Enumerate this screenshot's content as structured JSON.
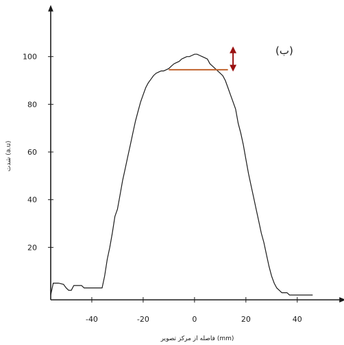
{
  "chart_data": {
    "type": "line",
    "title": "",
    "panel_label": "(ب)",
    "xlabel": "فاصله از مرکز تصویر (mm)",
    "ylabel": "شدت (a.u)",
    "x_ticks": [
      -40,
      -20,
      0,
      20,
      40
    ],
    "y_ticks": [
      20,
      40,
      60,
      80,
      100
    ],
    "xlim": [
      -56,
      55
    ],
    "ylim": [
      -2,
      118
    ],
    "grid": false,
    "series": [
      {
        "color": "#1a1a1a",
        "x": [
          -56,
          -55,
          -53,
          -51,
          -50,
          -49,
          -48,
          -47,
          -46,
          -45,
          -44,
          -43,
          -42,
          -41,
          -40,
          -39,
          -38,
          -37,
          -36,
          -35,
          -34,
          -33,
          -32,
          -31,
          -30,
          -29,
          -28,
          -27,
          -26,
          -25,
          -24,
          -23,
          -22,
          -21,
          -20,
          -19,
          -18,
          -17,
          -16,
          -15,
          -14,
          -13,
          -12,
          -11,
          -10,
          -9,
          -8,
          -7,
          -6,
          -5,
          -4,
          -3,
          -2,
          -1,
          0,
          1,
          2,
          3,
          4,
          5,
          6,
          7,
          8,
          9,
          10,
          11,
          12,
          13,
          14,
          15,
          16,
          17,
          18,
          19,
          20,
          21,
          22,
          23,
          24,
          25,
          26,
          27,
          28,
          29,
          30,
          31,
          32,
          33,
          34,
          35,
          36,
          37,
          38,
          39,
          40,
          41,
          42,
          43,
          44,
          46
        ],
        "values": [
          0,
          5,
          5,
          4.5,
          3,
          2,
          2,
          4,
          4,
          4,
          4,
          3,
          3,
          3,
          3,
          3,
          3,
          3,
          3,
          8,
          15,
          20,
          26,
          33,
          36,
          42,
          48,
          53,
          58,
          63,
          68,
          73,
          77,
          81,
          84,
          87,
          89,
          90.5,
          92,
          93,
          93.5,
          94,
          94,
          94.5,
          95,
          96,
          97,
          97.5,
          98,
          99,
          99.5,
          100,
          100,
          100.5,
          101,
          101,
          100.5,
          100,
          99.5,
          99,
          97,
          96,
          95,
          94,
          93,
          92,
          90,
          87,
          84,
          81,
          78,
          72,
          68,
          63,
          57,
          51,
          46,
          41,
          36,
          31,
          26,
          22,
          17,
          12,
          8,
          5,
          3,
          2,
          1,
          1,
          1,
          0,
          0,
          0,
          0,
          0,
          0,
          0,
          0,
          0
        ]
      }
    ],
    "fwhm_marker": {
      "x1": -10,
      "x2": 13,
      "y": 94.5,
      "color": "#c0622b"
    },
    "arrow_marker": {
      "x": 15,
      "y1": 94,
      "y2": 104,
      "color": "#9a1111"
    }
  }
}
